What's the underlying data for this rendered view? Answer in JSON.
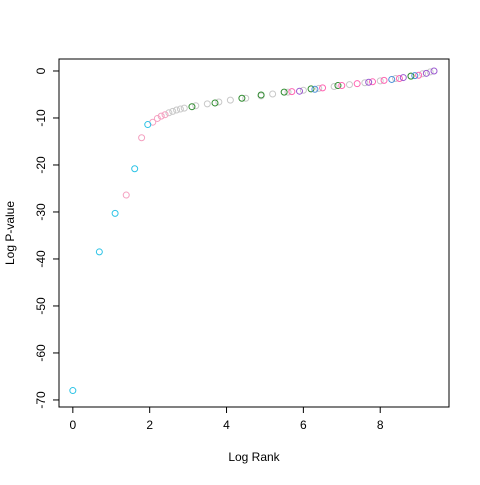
{
  "chart_data": {
    "type": "scatter",
    "x_label": "Log Rank",
    "y_label": "Log P-value",
    "xlim": [
      -0.36,
      9.79
    ],
    "ylim": [
      -71.5,
      2.55
    ],
    "xticks": [
      0,
      2,
      4,
      6,
      8
    ],
    "yticks": [
      0,
      -10,
      -20,
      -30,
      -40,
      -50,
      -60,
      -70
    ],
    "series": [
      {
        "color": "#c8c8c8",
        "x": [
          2.5,
          2.6,
          2.7,
          2.8,
          2.9,
          3.2,
          3.5,
          3.8,
          4.1,
          4.5,
          4.9,
          5.2,
          5.6,
          6.0,
          6.4,
          6.8,
          7.2,
          7.6,
          8.0,
          8.4,
          8.8,
          9.1,
          9.3
        ],
        "y": [
          -8.9,
          -8.6,
          -8.3,
          -8.1,
          -7.9,
          -7.4,
          -7.0,
          -6.6,
          -6.2,
          -5.8,
          -5.3,
          -4.9,
          -4.5,
          -4.1,
          -3.7,
          -3.3,
          -2.9,
          -2.5,
          -2.1,
          -1.6,
          -1.1,
          -0.6,
          -0.2
        ]
      },
      {
        "color": "#f4a0c0",
        "x": [
          1.39,
          1.79,
          2.08,
          2.2,
          2.3,
          2.4
        ],
        "y": [
          -26.4,
          -14.2,
          -10.9,
          -10.1,
          -9.6,
          -9.3
        ]
      },
      {
        "color": "#2cc3e6",
        "x": [
          0,
          0.69,
          1.1,
          1.61,
          1.95
        ],
        "y": [
          -68,
          -38.5,
          -30.3,
          -20.8,
          -11.4
        ]
      },
      {
        "color": "#2e8b2e",
        "x": [
          3.1,
          3.7,
          4.4,
          4.9,
          5.5,
          6.2,
          6.9,
          8.8
        ],
        "y": [
          -7.6,
          -6.8,
          -5.8,
          -5.1,
          -4.5,
          -3.8,
          -3.1,
          -1.1
        ]
      },
      {
        "color": "#ff66b3",
        "x": [
          5.7,
          6.5,
          7.0,
          7.4,
          7.8,
          8.1,
          8.5,
          9.0
        ],
        "y": [
          -4.4,
          -3.6,
          -3.1,
          -2.7,
          -2.3,
          -2.0,
          -1.6,
          -0.9
        ]
      },
      {
        "color": "#9b59d0",
        "x": [
          5.9,
          7.7,
          8.6,
          9.2,
          9.4
        ],
        "y": [
          -4.3,
          -2.4,
          -1.4,
          -0.5,
          0
        ]
      },
      {
        "color": "#4a90d9",
        "x": [
          6.3,
          8.3,
          8.9
        ],
        "y": [
          -3.9,
          -1.8,
          -1.0
        ]
      }
    ]
  }
}
